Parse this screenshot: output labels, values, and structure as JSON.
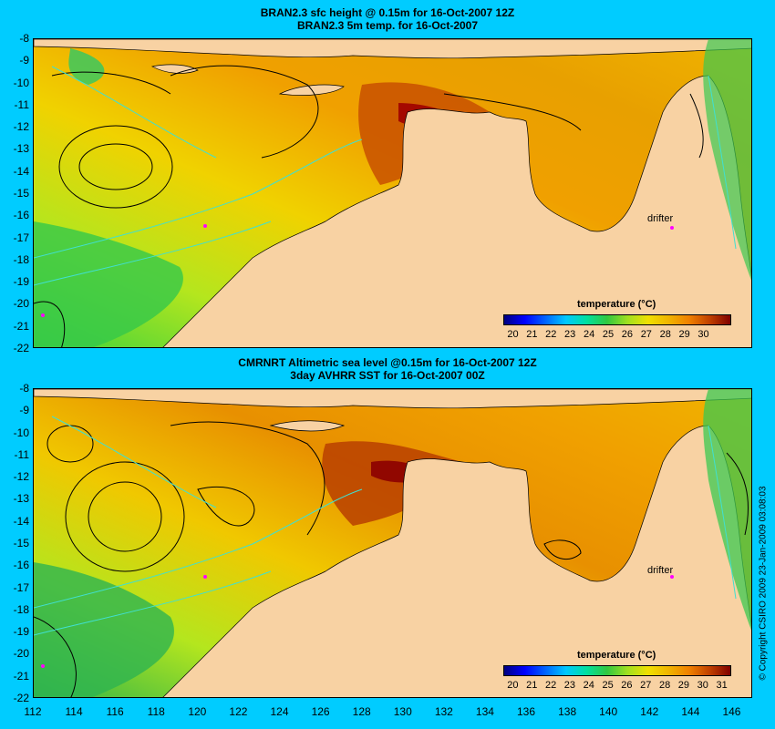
{
  "top": {
    "title_line1": "BRAN2.3 sfc height @ 0.15m for 16-Oct-2007 12Z",
    "title_line2": "BRAN2.3 5m temp. for 16-Oct-2007",
    "colorbar_title": "temperature (°C)",
    "colorbar_ticks": [
      "20",
      "21",
      "22",
      "23",
      "24",
      "25",
      "26",
      "27",
      "28",
      "29",
      "30"
    ],
    "drifter_label": "drifter"
  },
  "bottom": {
    "title_line1": "CMRNRT Altimetric sea level  @0.15m  for 16-Oct-2007 12Z",
    "title_line2": "3day AVHRR SST for 16-Oct-2007 00Z",
    "colorbar_title": "temperature (°C)",
    "colorbar_ticks": [
      "20",
      "21",
      "22",
      "23",
      "24",
      "25",
      "26",
      "27",
      "28",
      "29",
      "30",
      "31"
    ],
    "drifter_label": "drifter"
  },
  "lat_labels": [
    "-8",
    "-9",
    "-10",
    "-11",
    "-12",
    "-13",
    "-14",
    "-15",
    "-16",
    "-17",
    "-18",
    "-19",
    "-20",
    "-21",
    "-22"
  ],
  "lon_labels": [
    "112",
    "114",
    "116",
    "118",
    "120",
    "122",
    "124",
    "126",
    "128",
    "130",
    "132",
    "134",
    "136",
    "138",
    "140",
    "142",
    "144",
    "146"
  ],
  "copyright": "© Copyright CSIRO 2009   23-Jan-2009 03:08:03",
  "colors": {
    "background": "#00ccff",
    "land": "#f8d2a3",
    "contour": "#000000",
    "bathymetry": "#40e0d0",
    "drifter_track": "#ff00ff"
  }
}
